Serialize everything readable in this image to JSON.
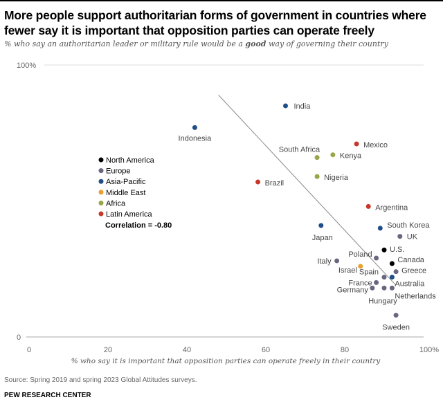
{
  "title": "More people support authoritarian forms of government in countries where fewer say it is important that opposition parties can operate freely",
  "subtitle_parts": [
    "% who say an authoritarian leader or military rule would be a ",
    "good",
    " way of governing their country"
  ],
  "source": "Source: Spring 2019 and spring 2023 Global Attitudes surveys.",
  "organization": "PEW RESEARCH CENTER",
  "chart_data": {
    "type": "scatter",
    "xlabel": "% who say it is important that opposition parties can operate freely in their country",
    "ylabel": "",
    "xlim": [
      0,
      100
    ],
    "ylim": [
      0,
      100
    ],
    "x_ticks": [
      "0",
      "20",
      "40",
      "60",
      "80",
      "100%"
    ],
    "y_ticks": [
      "0",
      "100%"
    ],
    "grid": false,
    "legend_position": "left",
    "annotation": "Correlation = -0.80",
    "trendline": [
      [
        48,
        89
      ],
      [
        93,
        19
      ]
    ],
    "regions": [
      {
        "name": "North America",
        "color": "#000000"
      },
      {
        "name": "Europe",
        "color": "#6b6680"
      },
      {
        "name": "Asia-Pacific",
        "color": "#1f4e89"
      },
      {
        "name": "Middle East",
        "color": "#e8a02c"
      },
      {
        "name": "Africa",
        "color": "#9aa54a"
      },
      {
        "name": "Latin America",
        "color": "#c8382a"
      }
    ],
    "points": [
      {
        "country": "India",
        "region": "Asia-Pacific",
        "x": 65,
        "y": 85
      },
      {
        "country": "Indonesia",
        "region": "Asia-Pacific",
        "x": 42,
        "y": 77
      },
      {
        "country": "Mexico",
        "region": "Latin America",
        "x": 83,
        "y": 71
      },
      {
        "country": "South Africa",
        "region": "Africa",
        "x": 73,
        "y": 66
      },
      {
        "country": "Kenya",
        "region": "Africa",
        "x": 77,
        "y": 67
      },
      {
        "country": "Nigeria",
        "region": "Africa",
        "x": 73,
        "y": 59
      },
      {
        "country": "Brazil",
        "region": "Latin America",
        "x": 58,
        "y": 57
      },
      {
        "country": "Argentina",
        "region": "Latin America",
        "x": 86,
        "y": 48
      },
      {
        "country": "Japan",
        "region": "Asia-Pacific",
        "x": 74,
        "y": 41
      },
      {
        "country": "South Korea",
        "region": "Asia-Pacific",
        "x": 89,
        "y": 40
      },
      {
        "country": "UK",
        "region": "Europe",
        "x": 94,
        "y": 37
      },
      {
        "country": "U.S.",
        "region": "North America",
        "x": 90,
        "y": 32
      },
      {
        "country": "Poland",
        "region": "Europe",
        "x": 88,
        "y": 29
      },
      {
        "country": "Canada",
        "region": "North America",
        "x": 92,
        "y": 27
      },
      {
        "country": "Italy",
        "region": "Europe",
        "x": 78,
        "y": 28
      },
      {
        "country": "Israel",
        "region": "Middle East",
        "x": 84,
        "y": 26
      },
      {
        "country": "Greece",
        "region": "Europe",
        "x": 93,
        "y": 24
      },
      {
        "country": "Spain",
        "region": "Europe",
        "x": 90,
        "y": 22
      },
      {
        "country": "Australia",
        "region": "Asia-Pacific",
        "x": 92,
        "y": 22
      },
      {
        "country": "France",
        "region": "Europe",
        "x": 88,
        "y": 20
      },
      {
        "country": "Germany",
        "region": "Europe",
        "x": 87,
        "y": 18
      },
      {
        "country": "Hungary",
        "region": "Europe",
        "x": 90,
        "y": 18
      },
      {
        "country": "Netherlands",
        "region": "Europe",
        "x": 92,
        "y": 18
      },
      {
        "country": "Sweden",
        "region": "Europe",
        "x": 93,
        "y": 8
      }
    ]
  }
}
